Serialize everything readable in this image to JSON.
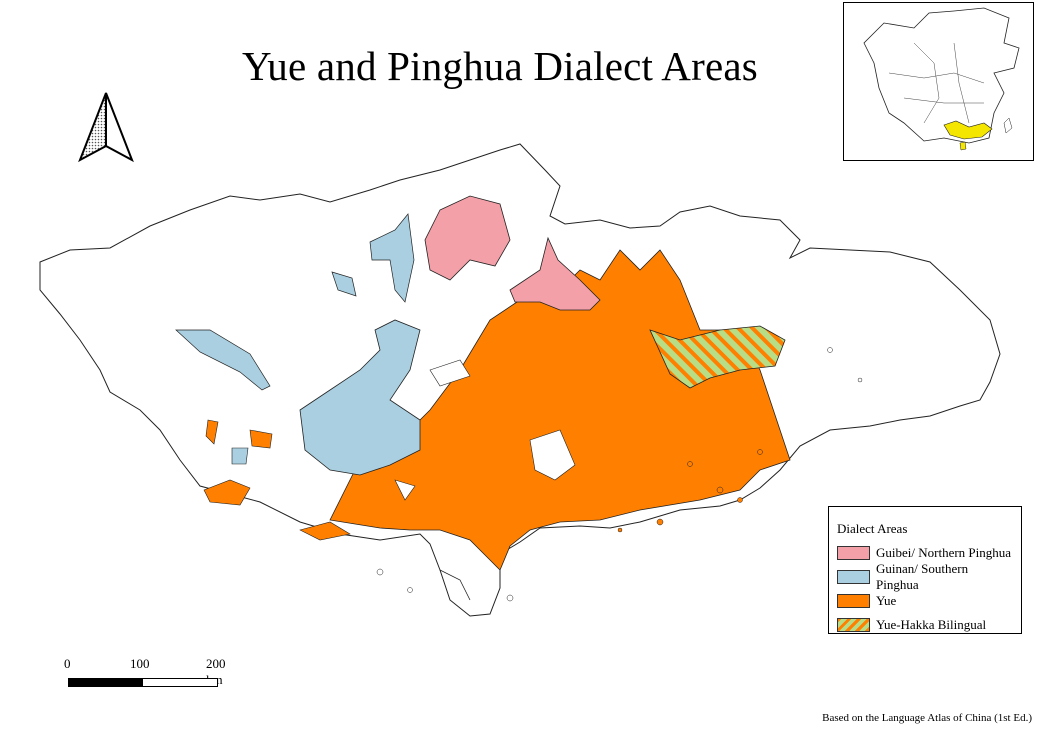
{
  "title": "Yue and Pinghua Dialect Areas",
  "north_arrow": {
    "icon": "north-arrow-icon"
  },
  "inset": {
    "description_icon": "china-locator-icon",
    "highlight_color": "#f5e600"
  },
  "legend": {
    "title": "Dialect Areas",
    "items": [
      {
        "label": "Guibei/ Northern Pinghua",
        "color": "#f4a0a8"
      },
      {
        "label": "Guinan/ Southern Pinghua",
        "color": "#a9cfe0"
      },
      {
        "label": "Yue",
        "color": "#ff7f00"
      },
      {
        "label": "Yue-Hakka Bilingual",
        "color": "#b7de86",
        "hatch": "#ff7f00"
      }
    ]
  },
  "scale": {
    "labels": [
      "0",
      "100",
      "200 km"
    ]
  },
  "source": "Based on the Language Atlas of China (1st Ed.)"
}
